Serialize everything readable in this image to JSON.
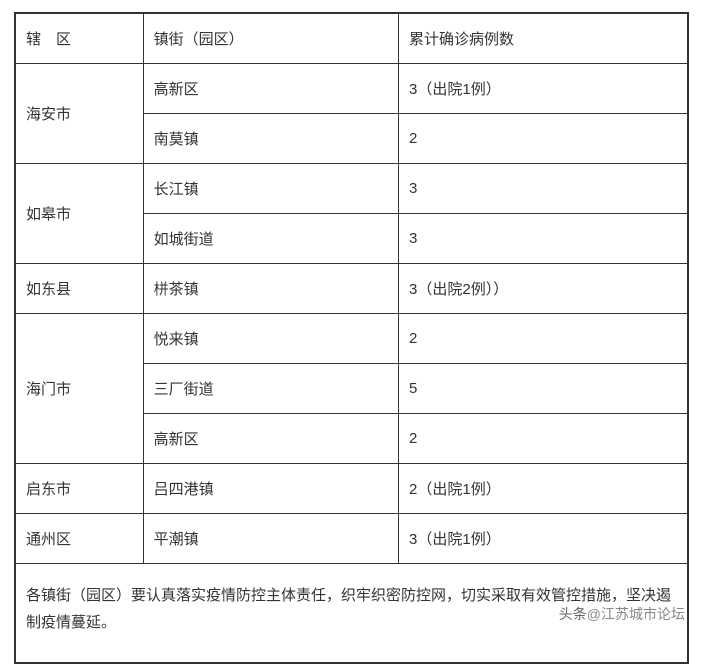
{
  "table": {
    "headers": {
      "col1": "辖　区",
      "col2": "镇街（园区）",
      "col3": "累计确诊病例数"
    },
    "rows": [
      {
        "district": "海安市",
        "rowspan": 2,
        "town": "高新区",
        "cases": "3（出院1例）"
      },
      {
        "town": "南莫镇",
        "cases": "2"
      },
      {
        "district": "如皋市",
        "rowspan": 2,
        "town": "长江镇",
        "cases": "3"
      },
      {
        "town": "如城街道",
        "cases": "3"
      },
      {
        "district": "如东县",
        "rowspan": 1,
        "town": "栟茶镇",
        "cases": "3（出院2例））"
      },
      {
        "district": "海门市",
        "rowspan": 3,
        "town": "悦来镇",
        "cases": "2"
      },
      {
        "town": "三厂街道",
        "cases": "5"
      },
      {
        "town": "高新区",
        "cases": "2"
      },
      {
        "district": "启东市",
        "rowspan": 1,
        "town": "吕四港镇",
        "cases": "2（出院1例）"
      },
      {
        "district": "通州区",
        "rowspan": 1,
        "town": "平潮镇",
        "cases": "3（出院1例）"
      }
    ],
    "footer": "各镇街（园区）要认真落实疫情防控主体责任，织牢织密防控网，切实采取有效管控措施，坚决遏制疫情蔓延。"
  },
  "watermark": {
    "source": "头条",
    "at": "@",
    "name": "江苏城市论坛"
  },
  "styles": {
    "border_color": "#333333",
    "text_color": "#333333",
    "background_color": "#ffffff",
    "font_size": 15,
    "cell_padding": "14px 10px",
    "watermark_color": "#888888"
  }
}
